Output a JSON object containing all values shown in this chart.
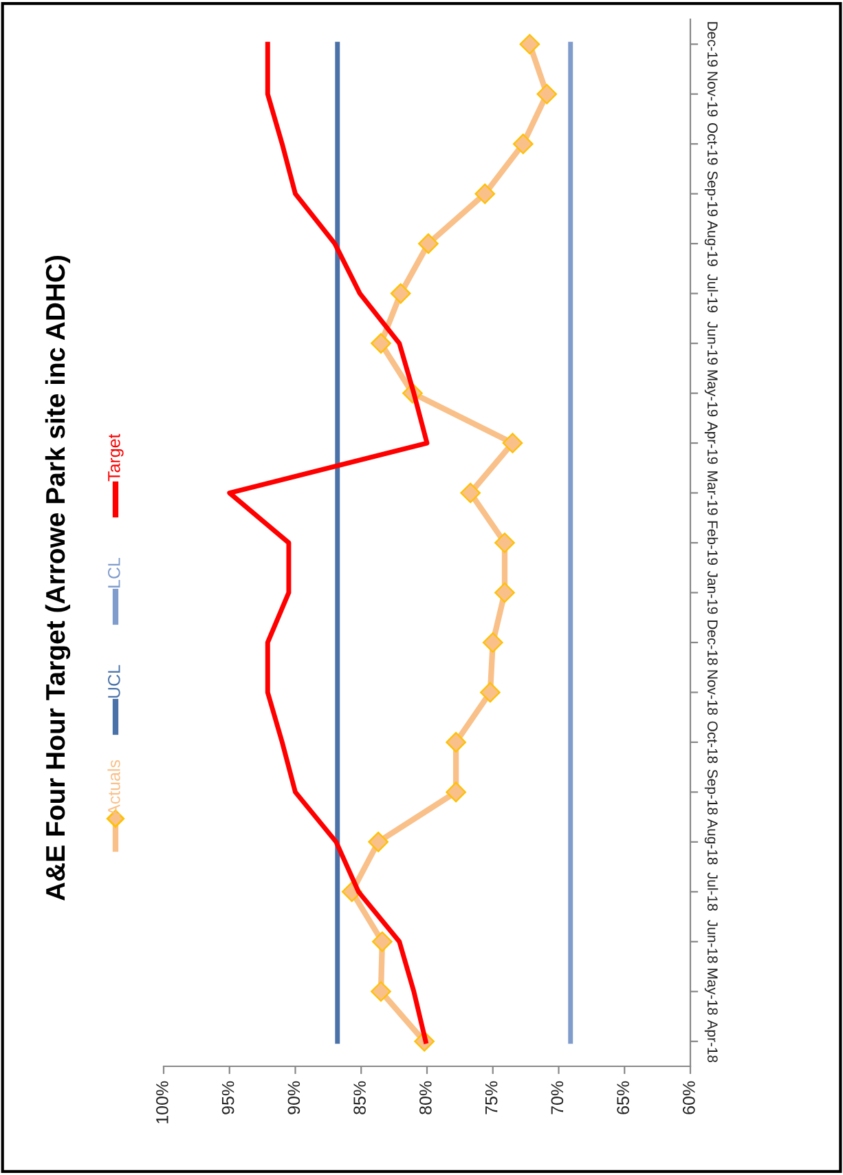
{
  "chart_data": {
    "type": "line",
    "title": "A&E Four Hour Target (Arrowe Park site inc ADHC)",
    "orientation": "horizontal",
    "categories": [
      "Dec-19",
      "Nov-19",
      "Oct-19",
      "Sep-19",
      "Aug-19",
      "Jul-19",
      "Jun-19",
      "May-19",
      "Apr-19",
      "Mar-19",
      "Feb-19",
      "Jan-19",
      "Dec-18",
      "Nov-18",
      "Oct-18",
      "Sep-18",
      "Aug-18",
      "Jul-18",
      "Jun-18",
      "May-18",
      "Apr-18"
    ],
    "series": [
      {
        "name": "Actuals",
        "color": "#f9c089",
        "marker": "diamond",
        "values": [
          72.2,
          70.9,
          72.7,
          75.6,
          79.9,
          82.0,
          83.5,
          81.1,
          73.5,
          76.7,
          74.1,
          74.1,
          75.0,
          75.2,
          77.8,
          77.8,
          83.7,
          85.7,
          83.4,
          83.5,
          80.2
        ]
      },
      {
        "name": "UCL",
        "color": "#4a72a8",
        "values": [
          86.8,
          86.8,
          86.8,
          86.8,
          86.8,
          86.8,
          86.8,
          86.8,
          86.8,
          86.8,
          86.8,
          86.8,
          86.8,
          86.8,
          86.8,
          86.8,
          86.8,
          86.8,
          86.8,
          86.8,
          86.8
        ]
      },
      {
        "name": "LCL",
        "color": "#7f9ccc",
        "values": [
          69.1,
          69.1,
          69.1,
          69.1,
          69.1,
          69.1,
          69.1,
          69.1,
          69.1,
          69.1,
          69.1,
          69.1,
          69.1,
          69.1,
          69.1,
          69.1,
          69.1,
          69.1,
          69.1,
          69.1,
          69.1
        ]
      },
      {
        "name": "Target",
        "color": "#ff0000",
        "values": [
          92.1,
          92.1,
          91.0,
          90.0,
          87.0,
          85.1,
          82.1,
          81.0,
          80.0,
          95.0,
          90.5,
          90.5,
          92.1,
          92.1,
          91.0,
          90.0,
          86.9,
          85.2,
          82.1,
          81.0,
          80.1
        ]
      }
    ],
    "xlim": [
      100,
      60
    ],
    "xticks": [
      {
        "value": 100,
        "label": "100%"
      },
      {
        "value": 95,
        "label": "95%"
      },
      {
        "value": 90,
        "label": "90%"
      },
      {
        "value": 85,
        "label": "85%"
      },
      {
        "value": 80,
        "label": "80%"
      },
      {
        "value": 75,
        "label": "75%"
      },
      {
        "value": 70,
        "label": "70%"
      },
      {
        "value": 65,
        "label": "65%"
      },
      {
        "value": 60,
        "label": "60%"
      }
    ],
    "grid": false,
    "legend": "left"
  }
}
